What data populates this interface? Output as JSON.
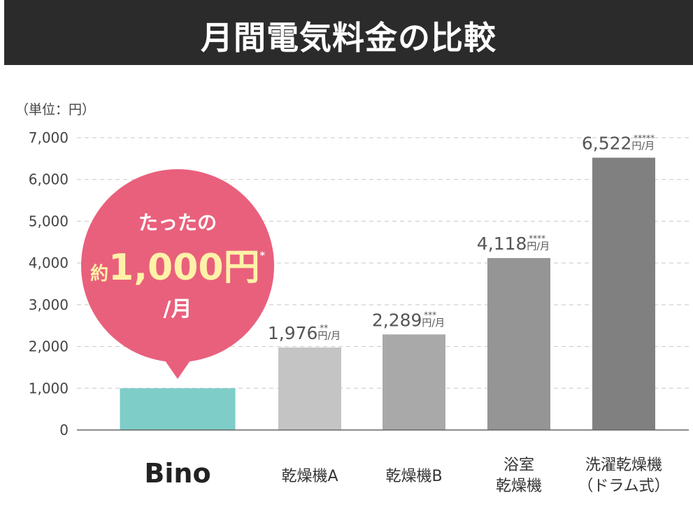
{
  "header": {
    "title": "月間電気料金の比較"
  },
  "chart_data": {
    "type": "bar",
    "title": "月間電気料金の比較",
    "unit_label": "（単位：円）",
    "ylim": [
      0,
      7000
    ],
    "yticks": [
      "7,000",
      "6,000",
      "5,000",
      "4,000",
      "3,000",
      "2,000",
      "1,000",
      "0"
    ],
    "grid": true,
    "categories": [
      {
        "lines": [
          "Bino"
        ],
        "is_logo": true
      },
      {
        "lines": [
          "乾燥機A"
        ]
      },
      {
        "lines": [
          "乾燥機B"
        ]
      },
      {
        "lines": [
          "浴室",
          "乾燥機"
        ]
      },
      {
        "lines": [
          "洗濯乾燥機",
          "（ドラム式）"
        ]
      }
    ],
    "values": [
      1000,
      1976,
      2289,
      4118,
      6522
    ],
    "colors": [
      "#7ecdc8",
      "#c4c4c4",
      "#a9a9a9",
      "#959595",
      "#808080"
    ],
    "value_labels": [
      null,
      {
        "num": "1,976",
        "unit": "円/月",
        "stars": "**"
      },
      {
        "num": "2,289",
        "unit": "円/月",
        "stars": "***"
      },
      {
        "num": "4,118",
        "unit": "円/月",
        "stars": "****"
      },
      {
        "num": "6,522",
        "unit": "円/月",
        "stars": "*****"
      }
    ],
    "callout": {
      "line1": "たったの",
      "prefix": "約",
      "amount": "1,000円",
      "star": "*",
      "line3": "/月",
      "color": "#e9607c",
      "amount_color": "#fff2a8"
    }
  }
}
